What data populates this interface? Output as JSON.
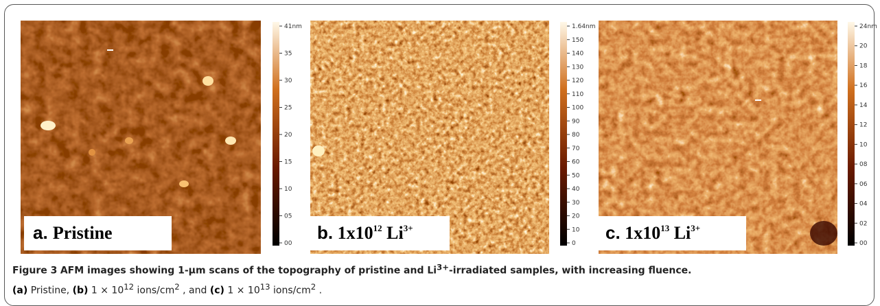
{
  "panels": [
    {
      "label": {
        "prefix": "a.",
        "text": "Pristine"
      },
      "colorbar_ticks": [
        "41nm",
        "35",
        "30",
        "25",
        "20",
        "15",
        "10",
        "05",
        "00"
      ]
    },
    {
      "label": {
        "prefix": "b.",
        "base": "1x10",
        "exp": "12",
        "ion": "Li",
        "charge": "3+"
      },
      "colorbar_ticks": [
        "1.64nm",
        "150",
        "140",
        "130",
        "120",
        "110",
        "100",
        "90",
        "80",
        "70",
        "60",
        "50",
        "40",
        "30",
        "20",
        "10",
        "0"
      ]
    },
    {
      "label": {
        "prefix": "c.",
        "base": "1x10",
        "exp": "13",
        "ion": "Li",
        "charge": "3+"
      },
      "colorbar_ticks": [
        "24nm",
        "20",
        "18",
        "16",
        "14",
        "12",
        "10",
        "08",
        "06",
        "04",
        "02",
        "00"
      ]
    }
  ],
  "caption": {
    "figure": "Figure 3",
    "title_start": "AFM images showing 1-μm scans of the topography of pristine and Li",
    "title_sup": "3+",
    "title_end": "-irradiated samples, with increasing fluence.",
    "line2": [
      {
        "b": "(a)"
      },
      {
        "t": "Pristine,"
      },
      {
        "b": "(b)"
      },
      {
        "t": "1 × 10"
      },
      {
        "s": "12"
      },
      {
        "t": "ions/cm"
      },
      {
        "s": "2"
      },
      {
        "t": ", and"
      },
      {
        "b": "(c)"
      },
      {
        "t": "1 × 10"
      },
      {
        "s": "13"
      },
      {
        "t": "ions/cm"
      },
      {
        "s": "2"
      },
      {
        "t": "."
      }
    ]
  }
}
